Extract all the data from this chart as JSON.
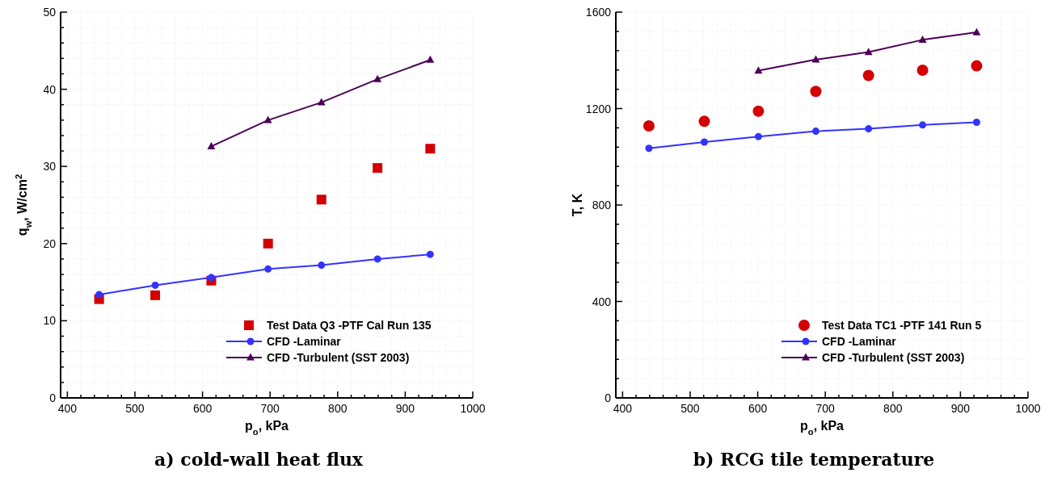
{
  "chart_data": [
    {
      "type": "line",
      "title": "a) cold-wall heat flux",
      "xlabel": "p$_{o}$, kPa",
      "ylabel": "q$_{w}$, W/cm$^{2}$",
      "xlim": [
        390,
        1000
      ],
      "ylim": [
        0,
        50
      ],
      "xticks": [
        400,
        {
          "value": 420,
          "label": null
        },
        {
          "value": 440,
          "label": null
        },
        {
          "value": 460,
          "label": null
        },
        {
          "value": 480,
          "label": null
        },
        500,
        {
          "value": 520,
          "label": null
        },
        {
          "value": 540,
          "label": null
        },
        {
          "value": 560,
          "label": null
        },
        {
          "value": 580,
          "label": null
        },
        600,
        {
          "value": 620,
          "label": null
        },
        {
          "value": 640,
          "label": null
        },
        {
          "value": 660,
          "label": null
        },
        {
          "value": 680,
          "label": null
        },
        700,
        {
          "value": 720,
          "label": null
        },
        {
          "value": 740,
          "label": null
        },
        {
          "value": 760,
          "label": null
        },
        {
          "value": 780,
          "label": null
        },
        800,
        {
          "value": 820,
          "label": null
        },
        {
          "value": 840,
          "label": null
        },
        {
          "value": 860,
          "label": null
        },
        {
          "value": 880,
          "label": null
        },
        900,
        {
          "value": 920,
          "label": null
        },
        {
          "value": 940,
          "label": null
        },
        {
          "value": 960,
          "label": null
        },
        {
          "value": 980,
          "label": null
        },
        1000
      ],
      "yticks": [
        0,
        {
          "value": 2,
          "label": null
        },
        {
          "value": 4,
          "label": null
        },
        {
          "value": 6,
          "label": null
        },
        {
          "value": 8,
          "label": null
        },
        10,
        {
          "value": 12,
          "label": null
        },
        {
          "value": 14,
          "label": null
        },
        {
          "value": 16,
          "label": null
        },
        {
          "value": 18,
          "label": null
        },
        20,
        {
          "value": 22,
          "label": null
        },
        {
          "value": 24,
          "label": null
        },
        {
          "value": 26,
          "label": null
        },
        {
          "value": 28,
          "label": null
        },
        30,
        {
          "value": 32,
          "label": null
        },
        {
          "value": 34,
          "label": null
        },
        {
          "value": 36,
          "label": null
        },
        {
          "value": 38,
          "label": null
        },
        40,
        {
          "value": 42,
          "label": null
        },
        {
          "value": 44,
          "label": null
        },
        {
          "value": 46,
          "label": null
        },
        {
          "value": 48,
          "label": null
        },
        50
      ],
      "grid": true,
      "legend": "bottom right",
      "line_style": "solid",
      "series": [
        {
          "name": "Test Data Q3 -PTF Cal Run 135",
          "type": "scatter",
          "marker": "square",
          "color": "#d40000",
          "x": [
            447,
            530,
            613,
            697,
            776,
            859,
            937
          ],
          "values": [
            12.8,
            13.3,
            15.2,
            20.0,
            25.7,
            29.8,
            32.3
          ]
        },
        {
          "name": "CFD -Laminar",
          "marker": "circle",
          "color": "#3333ff",
          "x": [
            447,
            530,
            613,
            697,
            776,
            859,
            937
          ],
          "values": [
            13.4,
            14.6,
            15.6,
            16.7,
            17.2,
            18.0,
            18.6
          ]
        },
        {
          "name": "CFD -Turbulent (SST 2003)",
          "marker": "triangle",
          "color": "#4b0055",
          "x": [
            613,
            697,
            776,
            859,
            937
          ],
          "values": [
            32.6,
            36.0,
            38.3,
            41.3,
            43.8
          ]
        }
      ]
    },
    {
      "type": "line",
      "title": "b) RCG tile temperature",
      "xlabel": "p$_{o}$, kPa",
      "ylabel": "T, K",
      "xlim": [
        390,
        1000
      ],
      "ylim": [
        0,
        1600
      ],
      "xticks": [
        400,
        {
          "value": 420,
          "label": null
        },
        {
          "value": 440,
          "label": null
        },
        {
          "value": 460,
          "label": null
        },
        {
          "value": 480,
          "label": null
        },
        500,
        {
          "value": 520,
          "label": null
        },
        {
          "value": 540,
          "label": null
        },
        {
          "value": 560,
          "label": null
        },
        {
          "value": 580,
          "label": null
        },
        600,
        {
          "value": 620,
          "label": null
        },
        {
          "value": 640,
          "label": null
        },
        {
          "value": 660,
          "label": null
        },
        {
          "value": 680,
          "label": null
        },
        700,
        {
          "value": 720,
          "label": null
        },
        {
          "value": 740,
          "label": null
        },
        {
          "value": 760,
          "label": null
        },
        {
          "value": 780,
          "label": null
        },
        800,
        {
          "value": 820,
          "label": null
        },
        {
          "value": 840,
          "label": null
        },
        {
          "value": 860,
          "label": null
        },
        {
          "value": 880,
          "label": null
        },
        900,
        {
          "value": 920,
          "label": null
        },
        {
          "value": 940,
          "label": null
        },
        {
          "value": 960,
          "label": null
        },
        {
          "value": 980,
          "label": null
        },
        1000
      ],
      "yticks": [
        0,
        {
          "value": 80,
          "label": null
        },
        {
          "value": 160,
          "label": null
        },
        {
          "value": 240,
          "label": null
        },
        {
          "value": 320,
          "label": null
        },
        400,
        {
          "value": 480,
          "label": null
        },
        {
          "value": 560,
          "label": null
        },
        {
          "value": 640,
          "label": null
        },
        {
          "value": 720,
          "label": null
        },
        800,
        {
          "value": 880,
          "label": null
        },
        {
          "value": 960,
          "label": null
        },
        {
          "value": 1040,
          "label": null
        },
        {
          "value": 1120,
          "label": null
        },
        1200,
        {
          "value": 1280,
          "label": null
        },
        {
          "value": 1360,
          "label": null
        },
        {
          "value": 1440,
          "label": null
        },
        {
          "value": 1520,
          "label": null
        },
        1600
      ],
      "grid": true,
      "legend": "bottom right",
      "line_style": "solid",
      "series": [
        {
          "name": "Test Data TC1 -PTF 141 Run 5",
          "type": "scatter",
          "marker": "circle",
          "color": "#d40000",
          "x": [
            439,
            521,
            601,
            686,
            764,
            844,
            924
          ],
          "values": [
            1128,
            1147,
            1189,
            1271,
            1337,
            1359,
            1377
          ]
        },
        {
          "name": "CFD -Laminar",
          "marker": "circle",
          "color": "#3333ff",
          "x": [
            439,
            521,
            601,
            686,
            764,
            844,
            924
          ],
          "values": [
            1035,
            1061,
            1084,
            1106,
            1116,
            1132,
            1143
          ]
        },
        {
          "name": "CFD -Turbulent (SST 2003)",
          "marker": "triangle",
          "color": "#4b0055",
          "x": [
            601,
            686,
            764,
            844,
            924
          ],
          "values": [
            1357,
            1403,
            1434,
            1485,
            1516
          ]
        }
      ]
    }
  ]
}
